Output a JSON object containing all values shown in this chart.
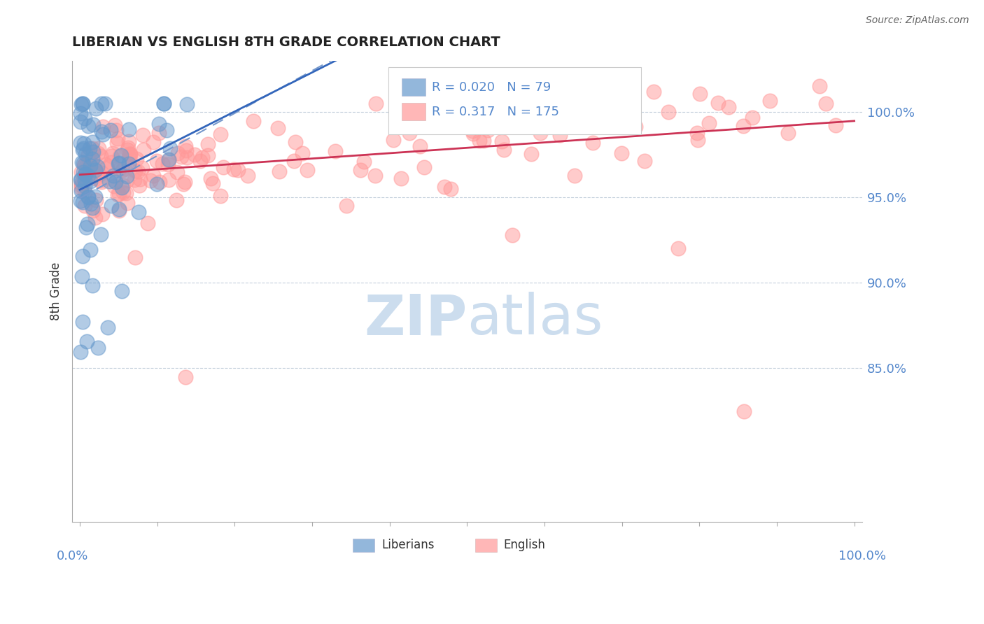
{
  "title": "LIBERIAN VS ENGLISH 8TH GRADE CORRELATION CHART",
  "source": "Source: ZipAtlas.com",
  "ylabel": "8th Grade",
  "yticks": [
    85.0,
    90.0,
    95.0,
    100.0
  ],
  "liberian_color": "#6699CC",
  "english_color": "#FF9999",
  "liberian_R": 0.02,
  "liberian_N": 79,
  "english_R": 0.317,
  "english_N": 175,
  "tick_color": "#5588CC",
  "background_color": "#ffffff",
  "watermark_color": "#CCDDEE"
}
